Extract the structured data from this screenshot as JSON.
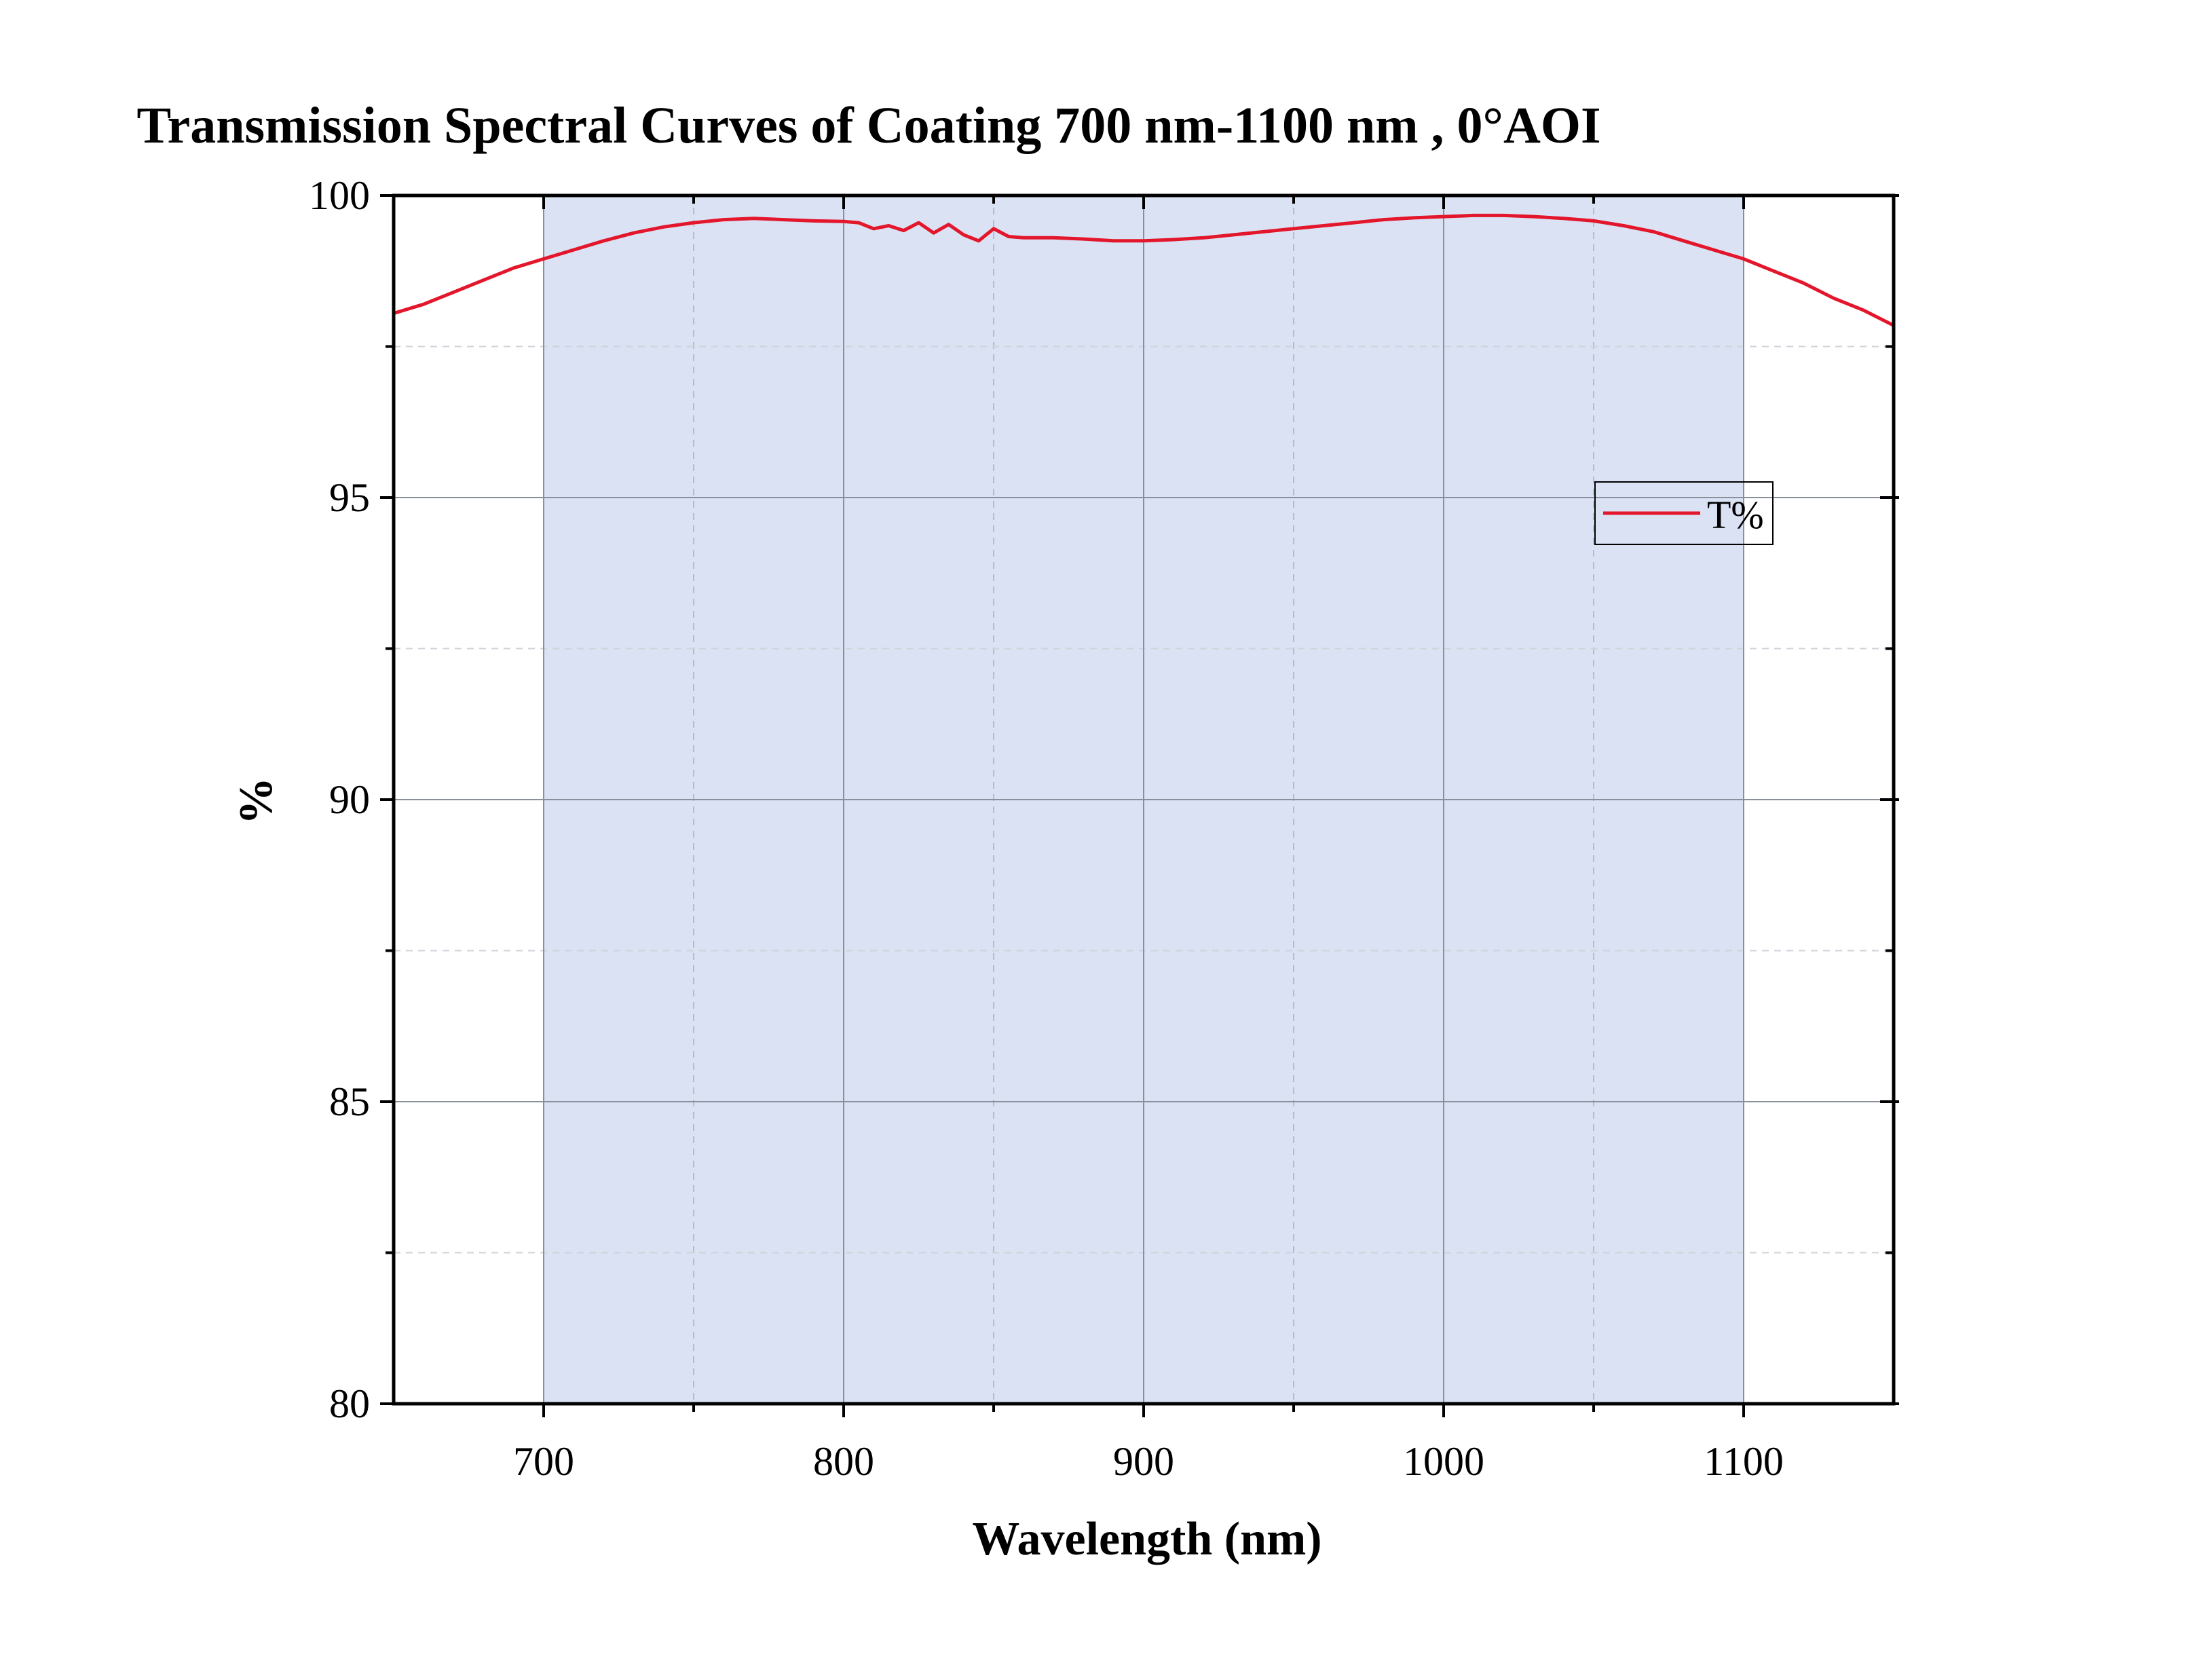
{
  "chart_data": {
    "type": "line",
    "title": "Transmission Spectral Curves of Coating 700 nm-1100 nm , 0°AOI",
    "xlabel": "Wavelength (nm)",
    "ylabel": "%",
    "xlim": [
      650,
      1150
    ],
    "ylim": [
      80,
      100
    ],
    "xticks": [
      700,
      800,
      900,
      1000,
      1100
    ],
    "yticks": [
      80,
      85,
      90,
      95,
      100
    ],
    "x_minor_ticks": [
      750,
      850,
      950,
      1050
    ],
    "y_minor_ticks": [
      82.5,
      87.5,
      92.5,
      97.5
    ],
    "grid": true,
    "highlight_band": {
      "x_start": 700,
      "x_end": 1100,
      "color": "#dae2f3"
    },
    "legend": {
      "placement": "right",
      "entries": [
        "T%"
      ]
    },
    "series": [
      {
        "name": "T%",
        "color": "#e3162b",
        "x": [
          650,
          660,
          670,
          680,
          690,
          700,
          710,
          720,
          730,
          740,
          750,
          760,
          770,
          780,
          790,
          800,
          805,
          810,
          815,
          820,
          825,
          830,
          835,
          840,
          845,
          850,
          855,
          860,
          870,
          880,
          890,
          900,
          910,
          920,
          930,
          940,
          950,
          960,
          970,
          980,
          990,
          1000,
          1010,
          1020,
          1030,
          1040,
          1050,
          1060,
          1070,
          1080,
          1090,
          1100,
          1110,
          1120,
          1130,
          1140,
          1150
        ],
        "y": [
          98.05,
          98.2,
          98.4,
          98.6,
          98.8,
          98.95,
          99.1,
          99.25,
          99.38,
          99.48,
          99.55,
          99.6,
          99.62,
          99.6,
          99.58,
          99.57,
          99.55,
          99.45,
          99.5,
          99.42,
          99.55,
          99.38,
          99.52,
          99.35,
          99.25,
          99.45,
          99.32,
          99.3,
          99.3,
          99.28,
          99.25,
          99.25,
          99.27,
          99.3,
          99.35,
          99.4,
          99.45,
          99.5,
          99.55,
          99.6,
          99.63,
          99.65,
          99.67,
          99.67,
          99.65,
          99.62,
          99.58,
          99.5,
          99.4,
          99.25,
          99.1,
          98.95,
          98.75,
          98.55,
          98.3,
          98.1,
          97.85
        ]
      }
    ]
  }
}
